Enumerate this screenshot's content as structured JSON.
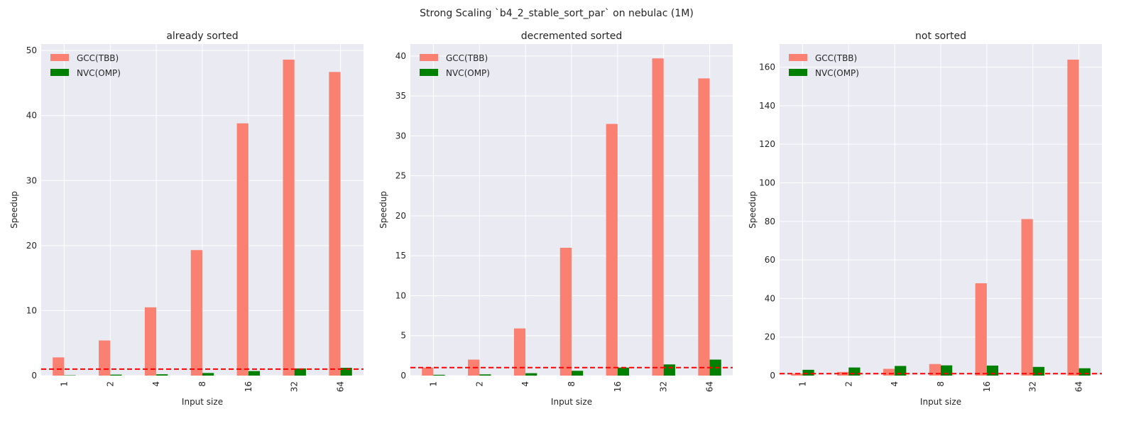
{
  "figure": {
    "suptitle": "Strong Scaling `b4_2_stable_sort_par` on nebulac (1M)"
  },
  "colors": {
    "gcc": "#fa8072",
    "nvc": "#008000",
    "baseline": "#ff0000",
    "axes_bg": "#eaeaf2",
    "grid": "#ffffff"
  },
  "chart_data": [
    {
      "type": "bar",
      "title": "already sorted",
      "xlabel": "Input size",
      "ylabel": "Speedup",
      "categories": [
        "1",
        "2",
        "4",
        "8",
        "16",
        "32",
        "64"
      ],
      "series": [
        {
          "name": "GCC(TBB)",
          "values": [
            2.8,
            5.4,
            10.5,
            19.3,
            38.8,
            48.6,
            46.7
          ]
        },
        {
          "name": "NVC(OMP)",
          "values": [
            0.05,
            0.15,
            0.2,
            0.4,
            0.7,
            1.1,
            1.2
          ]
        }
      ],
      "ylim": [
        0,
        51
      ],
      "yticks": [
        0,
        10,
        20,
        30,
        40,
        50
      ],
      "baseline": 1.0,
      "legend": "top-left",
      "grid": true
    },
    {
      "type": "bar",
      "title": "decremented sorted",
      "xlabel": "Input size",
      "ylabel": "Speedup",
      "categories": [
        "1",
        "2",
        "4",
        "8",
        "16",
        "32",
        "64"
      ],
      "series": [
        {
          "name": "GCC(TBB)",
          "values": [
            1.0,
            2.0,
            5.9,
            16.0,
            31.5,
            39.7,
            37.2
          ]
        },
        {
          "name": "NVC(OMP)",
          "values": [
            0.1,
            0.15,
            0.3,
            0.6,
            1.0,
            1.4,
            2.0
          ]
        }
      ],
      "ylim": [
        0,
        41.5
      ],
      "yticks": [
        0,
        5,
        10,
        15,
        20,
        25,
        30,
        35,
        40
      ],
      "baseline": 1.0,
      "legend": "top-left",
      "grid": true
    },
    {
      "type": "bar",
      "title": "not sorted",
      "xlabel": "Input size",
      "ylabel": "Speedup",
      "categories": [
        "1",
        "2",
        "4",
        "8",
        "16",
        "32",
        "64"
      ],
      "series": [
        {
          "name": "GCC(TBB)",
          "values": [
            1.0,
            1.9,
            3.5,
            6.0,
            47.9,
            81.2,
            163.9
          ]
        },
        {
          "name": "NVC(OMP)",
          "values": [
            3.0,
            4.2,
            5.0,
            5.3,
            5.2,
            4.5,
            3.8
          ]
        }
      ],
      "ylim": [
        0,
        172
      ],
      "yticks": [
        0,
        20,
        40,
        60,
        80,
        100,
        120,
        140,
        160
      ],
      "baseline": 1.0,
      "legend": "top-left",
      "grid": true
    }
  ]
}
